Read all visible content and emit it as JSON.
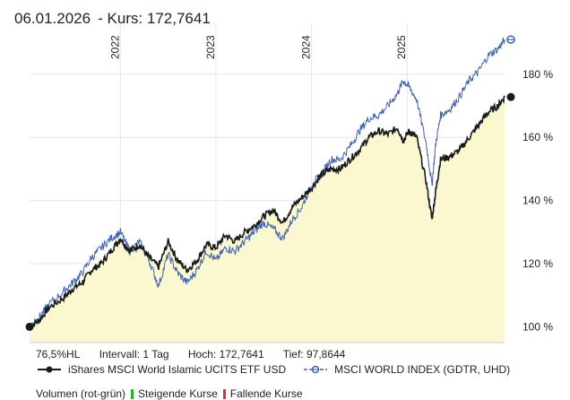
{
  "header": {
    "date": "06.01.2026",
    "price_label": "- Kurs: 172,7641"
  },
  "stats": {
    "hl": "76,5%HL",
    "interval": "Intervall: 1 Tag",
    "high": "Hoch: 172,7641",
    "low": "Tief: 97,8644"
  },
  "legend": {
    "series1": "iShares MSCI World Islamic UCITS ETF USD",
    "series2": "MSCI WORLD INDEX (GDTR, UHD)"
  },
  "volume": {
    "label": "Volumen (rot-grün)",
    "rising": "Steigende Kurse",
    "falling": "Fallende Kurse"
  },
  "colors": {
    "series1": "#1a1a1a",
    "series2": "#3c62b8",
    "fill": "#fbf7cf",
    "grid": "#e6e6e6",
    "rising": "#2eae2e",
    "falling": "#e03030"
  },
  "chart_data": {
    "type": "line",
    "title": "06.01.2026 - Kurs: 172,7641",
    "x_range": [
      2021.05,
      2026.02
    ],
    "ylim": [
      95,
      195
    ],
    "y_ticks": [
      100,
      120,
      140,
      160,
      180
    ],
    "y_tick_labels": [
      "100 %",
      "120 %",
      "140 %",
      "160 %",
      "180 %"
    ],
    "year_ticks": [
      2022,
      2023,
      2024,
      2025
    ],
    "year_labels": [
      "2022",
      "2023",
      "2024",
      "2025"
    ],
    "grid": true,
    "series": [
      {
        "name": "iShares MSCI World Islamic UCITS ETF USD",
        "x": [
          2021.05,
          2021.15,
          2021.25,
          2021.4,
          2021.5,
          2021.6,
          2021.7,
          2021.8,
          2021.9,
          2022.0,
          2022.1,
          2022.2,
          2022.3,
          2022.4,
          2022.5,
          2022.6,
          2022.7,
          2022.8,
          2022.9,
          2023.0,
          2023.1,
          2023.2,
          2023.3,
          2023.4,
          2023.5,
          2023.6,
          2023.7,
          2023.8,
          2023.9,
          2024.0,
          2024.1,
          2024.2,
          2024.3,
          2024.4,
          2024.5,
          2024.6,
          2024.7,
          2024.8,
          2024.9,
          2024.96,
          2025.02,
          2025.1,
          2025.2,
          2025.26,
          2025.3,
          2025.35,
          2025.45,
          2025.55,
          2025.65,
          2025.75,
          2025.85,
          2025.95,
          2026.02
        ],
        "values": [
          100,
          102,
          106,
          109,
          112,
          114,
          118,
          120,
          124,
          128,
          124,
          126,
          122,
          119,
          127,
          121,
          118,
          121,
          126,
          125,
          129,
          127,
          130,
          132,
          135,
          137,
          133,
          138,
          141,
          144,
          148,
          150,
          150,
          153,
          156,
          160,
          162,
          161,
          163,
          159,
          162,
          160,
          146,
          134,
          143,
          153,
          154,
          156,
          160,
          164,
          168,
          170,
          172.8
        ]
      },
      {
        "name": "MSCI WORLD INDEX (GDTR, UHD)",
        "x": [
          2021.05,
          2021.15,
          2021.25,
          2021.4,
          2021.5,
          2021.6,
          2021.7,
          2021.8,
          2021.9,
          2022.0,
          2022.1,
          2022.2,
          2022.3,
          2022.4,
          2022.5,
          2022.6,
          2022.7,
          2022.8,
          2022.9,
          2023.0,
          2023.1,
          2023.2,
          2023.3,
          2023.4,
          2023.5,
          2023.6,
          2023.7,
          2023.8,
          2023.9,
          2024.0,
          2024.1,
          2024.2,
          2024.3,
          2024.4,
          2024.5,
          2024.6,
          2024.7,
          2024.8,
          2024.9,
          2024.96,
          2025.02,
          2025.1,
          2025.2,
          2025.26,
          2025.3,
          2025.35,
          2025.45,
          2025.55,
          2025.65,
          2025.75,
          2025.85,
          2025.95,
          2026.02
        ],
        "values": [
          100,
          103,
          107,
          111,
          114,
          117,
          122,
          125,
          128,
          130,
          124,
          127,
          121,
          113,
          123,
          117,
          114,
          118,
          124,
          121,
          125,
          124,
          127,
          130,
          133,
          131,
          128,
          134,
          138,
          145,
          148,
          153,
          153,
          157,
          162,
          166,
          167,
          170,
          174,
          178,
          176,
          172,
          158,
          145,
          158,
          167,
          169,
          173,
          178,
          181,
          186,
          188,
          191
        ]
      }
    ]
  }
}
